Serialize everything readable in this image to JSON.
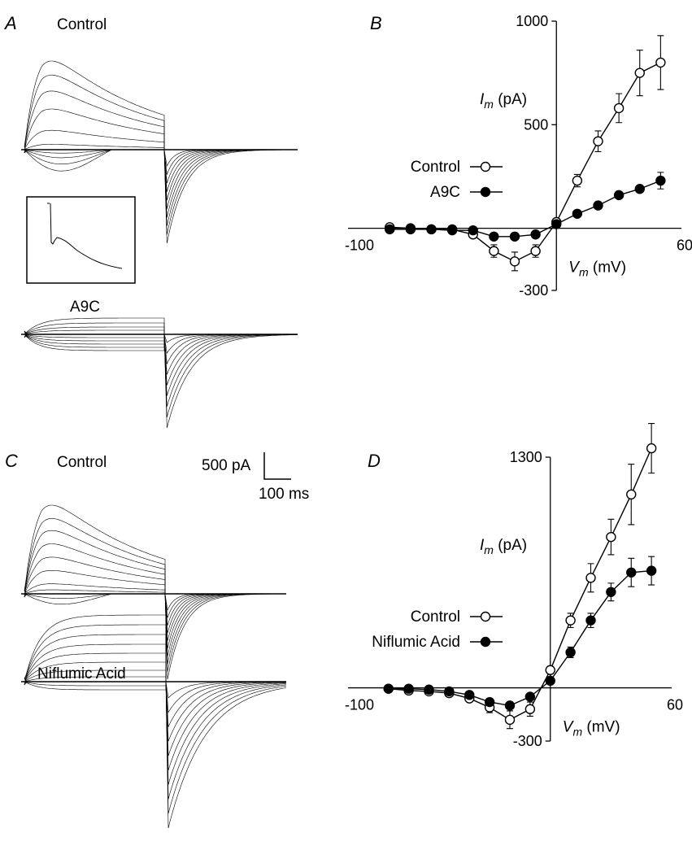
{
  "panels": {
    "A": {
      "letter": "A",
      "title_control": "Control",
      "title_drug": "A9C"
    },
    "B": {
      "letter": "B"
    },
    "C": {
      "letter": "C",
      "title_control": "Control",
      "title_drug": "Niflumic Acid"
    },
    "D": {
      "letter": "D"
    }
  },
  "scale_bar": {
    "current": "500 pA",
    "time": "100 ms"
  },
  "chart_data": [
    {
      "panel": "B",
      "type": "scatter",
      "x_axis": {
        "ticks": [
          "-100",
          "60"
        ],
        "label_main": "V",
        "label_sub": "m",
        "label_unit": " (mV)",
        "xlim": [
          -100,
          60
        ]
      },
      "y_axis": {
        "ticks": [
          "1000",
          "500",
          "-300"
        ],
        "label_main": "I",
        "label_sub": "m",
        "label_unit": " (pA)",
        "ylim": [
          -300,
          1000
        ]
      },
      "legend": "middle-left",
      "series": [
        {
          "name": "Control",
          "marker": "open-circle",
          "x": [
            -80,
            -70,
            -60,
            -50,
            -40,
            -30,
            -20,
            -10,
            0,
            10,
            20,
            30,
            40,
            50
          ],
          "y": [
            5,
            0,
            -5,
            -5,
            -30,
            -110,
            -160,
            -110,
            30,
            230,
            420,
            580,
            750,
            800
          ],
          "err": [
            10,
            10,
            10,
            10,
            15,
            30,
            45,
            30,
            15,
            30,
            50,
            70,
            110,
            130
          ]
        },
        {
          "name": "A9C",
          "marker": "filled-circle",
          "x": [
            -80,
            -70,
            -60,
            -50,
            -40,
            -30,
            -20,
            -10,
            0,
            10,
            20,
            30,
            40,
            50
          ],
          "y": [
            -5,
            -5,
            -5,
            -10,
            -10,
            -40,
            -40,
            -30,
            20,
            70,
            110,
            160,
            190,
            230
          ],
          "err": [
            0,
            0,
            0,
            0,
            0,
            0,
            0,
            0,
            0,
            0,
            0,
            0,
            0,
            40
          ]
        }
      ]
    },
    {
      "panel": "D",
      "type": "scatter",
      "x_axis": {
        "ticks": [
          "-100",
          "60"
        ],
        "label_main": "V",
        "label_sub": "m",
        "label_unit": " (mV)",
        "xlim": [
          -100,
          60
        ]
      },
      "y_axis": {
        "ticks": [
          "1300",
          "-300"
        ],
        "label_main": "I",
        "label_sub": "m",
        "label_unit": " (pA)",
        "ylim": [
          -300,
          1300
        ]
      },
      "legend": "middle-left",
      "series": [
        {
          "name": "Control",
          "marker": "open-circle",
          "x": [
            -80,
            -70,
            -60,
            -50,
            -40,
            -30,
            -20,
            -10,
            0,
            10,
            20,
            30,
            40,
            50
          ],
          "y": [
            -5,
            -15,
            -20,
            -30,
            -60,
            -110,
            -180,
            -120,
            100,
            380,
            620,
            850,
            1090,
            1350
          ],
          "err": [
            10,
            10,
            10,
            10,
            15,
            30,
            50,
            40,
            20,
            40,
            80,
            100,
            170,
            140
          ]
        },
        {
          "name": "Niflumic Acid",
          "marker": "filled-circle",
          "x": [
            -80,
            -70,
            -60,
            -50,
            -40,
            -30,
            -20,
            -10,
            0,
            10,
            20,
            30,
            40,
            50
          ],
          "y": [
            -5,
            -5,
            -10,
            -20,
            -40,
            -80,
            -100,
            -50,
            40,
            200,
            380,
            540,
            650,
            660
          ],
          "err": [
            0,
            0,
            0,
            0,
            0,
            0,
            0,
            0,
            0,
            30,
            40,
            50,
            80,
            80
          ]
        }
      ]
    }
  ]
}
